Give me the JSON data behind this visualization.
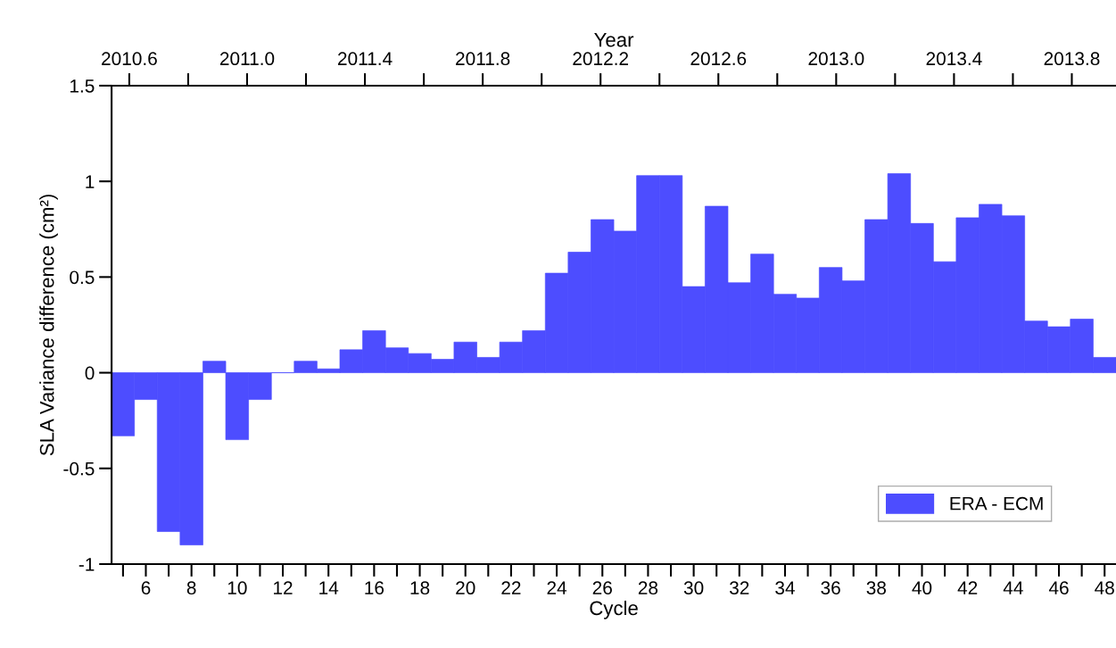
{
  "chart_data": {
    "type": "bar",
    "xlabel": "Cycle",
    "ylabel": "SLA Variance difference (cm²)",
    "x2label": "Year",
    "x": [
      5,
      6,
      7,
      8,
      9,
      10,
      11,
      12,
      13,
      14,
      15,
      16,
      17,
      18,
      19,
      20,
      21,
      22,
      23,
      24,
      25,
      26,
      27,
      28,
      29,
      30,
      31,
      32,
      33,
      34,
      35,
      36,
      37,
      38,
      39,
      40,
      41,
      42,
      43,
      44,
      45,
      46,
      47,
      48
    ],
    "series": [
      {
        "name": "ERA - ECM",
        "color": "#4d4dff",
        "values": [
          -0.33,
          -0.14,
          -0.83,
          -0.9,
          0.06,
          -0.35,
          -0.14,
          0,
          0.06,
          0.02,
          0.12,
          0.22,
          0.13,
          0.1,
          0.07,
          0.16,
          0.08,
          0.16,
          0.22,
          0.52,
          0.63,
          0.8,
          0.74,
          1.03,
          1.03,
          0.45,
          0.87,
          0.47,
          0.62,
          0.41,
          0.39,
          0.55,
          0.48,
          0.8,
          1.04,
          0.78,
          0.58,
          0.81,
          0.88,
          0.82,
          0.27,
          0.24,
          0.28,
          0.08
        ]
      }
    ],
    "xlim": [
      4.5,
      48.5
    ],
    "xticks": [
      {
        "value": 5,
        "label": null
      },
      6,
      {
        "value": 7,
        "label": null
      },
      8,
      {
        "value": 9,
        "label": null
      },
      10,
      {
        "value": 11,
        "label": null
      },
      12,
      {
        "value": 13,
        "label": null
      },
      14,
      {
        "value": 15,
        "label": null
      },
      16,
      {
        "value": 17,
        "label": null
      },
      18,
      {
        "value": 19,
        "label": null
      },
      20,
      {
        "value": 21,
        "label": null
      },
      22,
      {
        "value": 23,
        "label": null
      },
      24,
      {
        "value": 25,
        "label": null
      },
      26,
      {
        "value": 27,
        "label": null
      },
      28,
      {
        "value": 29,
        "label": null
      },
      30,
      {
        "value": 31,
        "label": null
      },
      32,
      {
        "value": 33,
        "label": null
      },
      34,
      {
        "value": 35,
        "label": null
      },
      36,
      {
        "value": 37,
        "label": null
      },
      38,
      {
        "value": 39,
        "label": null
      },
      40,
      {
        "value": 41,
        "label": null
      },
      42,
      {
        "value": 43,
        "label": null
      },
      44,
      {
        "value": 45,
        "label": null
      },
      46,
      {
        "value": 47,
        "label": null
      },
      48
    ],
    "x2lim": [
      2010.54,
      2013.95
    ],
    "x2ticks": [
      2010.6,
      {
        "value": 2010.8,
        "label": null
      },
      {
        "value": 2011.0,
        "label": "2011.0"
      },
      {
        "value": 2011.2,
        "label": null
      },
      2011.4,
      {
        "value": 2011.6,
        "label": null
      },
      2011.8,
      {
        "value": 2012.0,
        "label": null
      },
      2012.2,
      {
        "value": 2012.4,
        "label": null
      },
      2012.6,
      {
        "value": 2012.8,
        "label": null
      },
      {
        "value": 2013.0,
        "label": "2013.0"
      },
      {
        "value": 2013.2,
        "label": null
      },
      2013.4,
      {
        "value": 2013.6,
        "label": null
      },
      2013.8
    ],
    "ylim": [
      -1,
      1.5
    ],
    "yticks": [
      -1,
      -0.5,
      0,
      0.5,
      1,
      1.5
    ],
    "grid": false,
    "legend": "bottom right"
  }
}
